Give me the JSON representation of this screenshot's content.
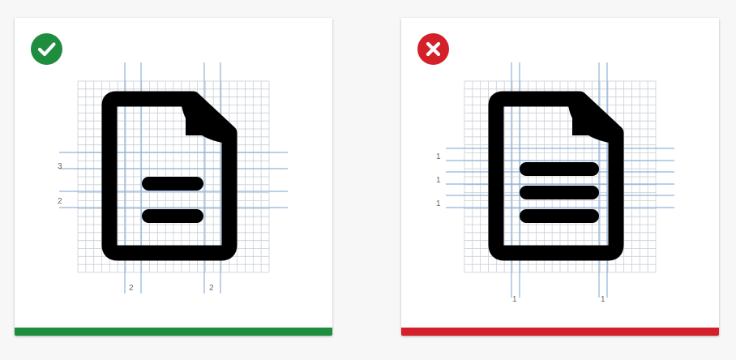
{
  "colors": {
    "good": "#1e8e3e",
    "bad": "#d32029",
    "grid_fine": "#c9ced6",
    "guide": "#8fb3d9",
    "icon": "#000000",
    "card": "#ffffff"
  },
  "correct_panel": {
    "badge_icon": "checkmark-icon",
    "left_labels": [
      "3",
      "2"
    ],
    "bottom_labels": [
      "2",
      "2"
    ]
  },
  "incorrect_panel": {
    "badge_icon": "x-mark-icon",
    "left_labels": [
      "1",
      "1",
      "1"
    ],
    "bottom_labels": [
      "1",
      "1"
    ]
  }
}
